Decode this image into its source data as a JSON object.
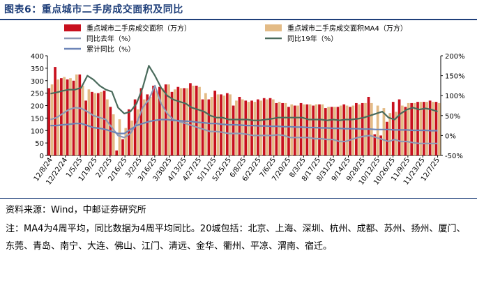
{
  "header": {
    "title": "图表6：重点城市二手房成交面积及同比"
  },
  "footer": {
    "source": "资料来源：Wind，中邮证券研究所",
    "note": "注：MA4为4周平均，同比数据为4周平均同比。20城包括：北京、上海、深圳、杭州、成都、苏州、扬州、厦门、东莞、青岛、南宁、大连、佛山、江门、清远、金华、衢州、平凉、渭南、宿迁。"
  },
  "colors": {
    "bar": "#c8101e",
    "ma4": "#e3bb86",
    "yoy_last": "#8e9ab6",
    "yoy_19": "#4a6b5c",
    "cum_yoy": "#6d85b8"
  },
  "chart_data": {
    "type": "bar",
    "legend": [
      "重点城市二手房成交面积（万方）",
      "重点城市二手房成交面积MA4（万方）",
      "同比去年（%）",
      "同比19年（%）",
      "累计同比（%）"
    ],
    "x_tick_labels": [
      "12/8/24",
      "12/22/24",
      "1/5/25",
      "1/19/25",
      "2/2/25",
      "2/16/25",
      "3/2/25",
      "3/16/25",
      "3/30/25",
      "4/13/25",
      "4/27/25",
      "5/11/25",
      "5/25/25",
      "6/8/25",
      "6/22/25",
      "7/6/25",
      "7/20/25",
      "8/3/25",
      "8/17/25",
      "8/31/25",
      "9/14/25",
      "9/28/25",
      "10/12/25",
      "10/26/25",
      "11/9/25",
      "11/23/25",
      "12/7/25"
    ],
    "y_left": {
      "min": 0,
      "max": 400,
      "ticks": [
        0,
        50,
        100,
        150,
        200,
        250,
        300,
        350,
        400
      ]
    },
    "y_right": {
      "min": -50,
      "max": 200,
      "ticks": [
        "-50%",
        "0%",
        "50%",
        "100%",
        "150%",
        "200%"
      ]
    },
    "series": [
      {
        "name": "重点城市二手房成交面积（万方）",
        "axis": "left",
        "kind": "bar",
        "values": [
          270,
          355,
          310,
          305,
          300,
          325,
          220,
          255,
          250,
          260,
          195,
          20,
          65,
          185,
          225,
          270,
          245,
          280,
          275,
          285,
          255,
          275,
          270,
          290,
          280,
          225,
          225,
          260,
          245,
          250,
          200,
          235,
          220,
          220,
          225,
          230,
          230,
          210,
          210,
          195,
          200,
          210,
          205,
          200,
          205,
          190,
          195,
          195,
          205,
          195,
          210,
          210,
          235,
          85,
          80,
          135,
          215,
          225,
          195,
          210,
          215,
          215,
          220,
          215
        ]
      },
      {
        "name": "重点城市二手房成交面积MA4（万方）",
        "axis": "left",
        "kind": "bar",
        "values": [
          285,
          305,
          315,
          310,
          325,
          280,
          265,
          250,
          255,
          225,
          165,
          145,
          110,
          140,
          185,
          225,
          235,
          260,
          270,
          285,
          265,
          270,
          270,
          280,
          275,
          250,
          235,
          245,
          240,
          245,
          220,
          225,
          215,
          215,
          220,
          225,
          225,
          215,
          210,
          205,
          200,
          205,
          205,
          205,
          205,
          195,
          195,
          200,
          200,
          200,
          205,
          210,
          210,
          200,
          190,
          170,
          175,
          200,
          210,
          210,
          215,
          215,
          215,
          210
        ]
      },
      {
        "name": "同比去年（%）",
        "axis": "right",
        "kind": "line",
        "values": [
          40,
          45,
          55,
          65,
          70,
          68,
          60,
          50,
          45,
          40,
          20,
          0,
          -5,
          5,
          30,
          70,
          90,
          125,
          80,
          55,
          40,
          35,
          30,
          25,
          20,
          15,
          10,
          10,
          8,
          5,
          5,
          5,
          3,
          0,
          0,
          0,
          0,
          2,
          0,
          -5,
          -5,
          -5,
          -5,
          -8,
          -8,
          -10,
          -10,
          -15,
          -15,
          -10,
          -5,
          -2,
          0,
          -5,
          -10,
          -15,
          -10,
          -15,
          -15,
          -18,
          -20,
          -20,
          -20,
          -20
        ]
      },
      {
        "name": "同比19年（%）",
        "axis": "right",
        "kind": "line",
        "values": [
          105,
          108,
          112,
          115,
          115,
          120,
          150,
          140,
          125,
          115,
          110,
          70,
          55,
          60,
          80,
          120,
          175,
          150,
          120,
          100,
          90,
          85,
          80,
          70,
          65,
          60,
          50,
          45,
          45,
          40,
          40,
          40,
          40,
          38,
          38,
          40,
          42,
          45,
          45,
          45,
          45,
          45,
          40,
          40,
          40,
          38,
          40,
          38,
          40,
          40,
          42,
          45,
          50,
          55,
          60,
          45,
          40,
          55,
          65,
          70,
          65,
          68,
          65,
          60
        ]
      },
      {
        "name": "累计同比（%）",
        "axis": "right",
        "kind": "line",
        "values": [
          25,
          25,
          27,
          28,
          30,
          30,
          25,
          20,
          18,
          15,
          10,
          5,
          5,
          15,
          25,
          30,
          35,
          38,
          40,
          40,
          38,
          37,
          36,
          35,
          33,
          32,
          30,
          30,
          28,
          27,
          27,
          26,
          25,
          25,
          24,
          24,
          23,
          23,
          22,
          22,
          21,
          21,
          20,
          20,
          19,
          19,
          18,
          18,
          17,
          17,
          17,
          16,
          16,
          15,
          15,
          15,
          14,
          14,
          14,
          13,
          13,
          13,
          12,
          12
        ]
      }
    ]
  }
}
